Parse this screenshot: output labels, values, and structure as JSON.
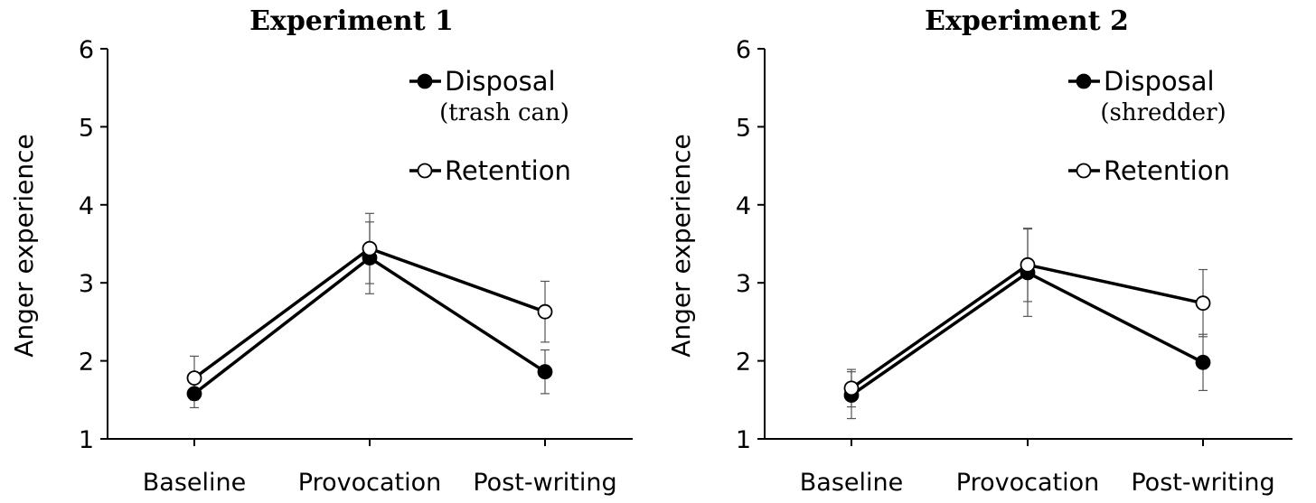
{
  "chart_data": [
    {
      "type": "line",
      "title": "Experiment 1",
      "xlabel": "",
      "ylabel": "Anger experience",
      "ylim": [
        1,
        6
      ],
      "yticks": [
        1,
        2,
        3,
        4,
        5,
        6
      ],
      "categories": [
        "Baseline",
        "Provocation",
        "Post-writing"
      ],
      "legend_placement": "top-right",
      "series": [
        {
          "name": "Disposal",
          "subtitle": "(trash can)",
          "marker": "filled",
          "values": [
            1.58,
            3.32,
            1.86
          ],
          "errors": [
            0.18,
            0.46,
            0.28
          ]
        },
        {
          "name": "Retention",
          "marker": "open",
          "values": [
            1.78,
            3.44,
            2.63
          ],
          "errors": [
            0.28,
            0.45,
            0.39
          ]
        }
      ]
    },
    {
      "type": "line",
      "title": "Experiment 2",
      "xlabel": "",
      "ylabel": "Anger experience",
      "ylim": [
        1,
        6
      ],
      "yticks": [
        1,
        2,
        3,
        4,
        5,
        6
      ],
      "categories": [
        "Baseline",
        "Provocation",
        "Post-writing"
      ],
      "legend_placement": "top-right",
      "series": [
        {
          "name": "Disposal",
          "subtitle": "(shredder)",
          "marker": "filled",
          "values": [
            1.56,
            3.13,
            1.98
          ],
          "errors": [
            0.3,
            0.56,
            0.36
          ]
        },
        {
          "name": "Retention",
          "marker": "open",
          "values": [
            1.65,
            3.23,
            2.74
          ],
          "errors": [
            0.24,
            0.47,
            0.43
          ]
        }
      ]
    }
  ]
}
